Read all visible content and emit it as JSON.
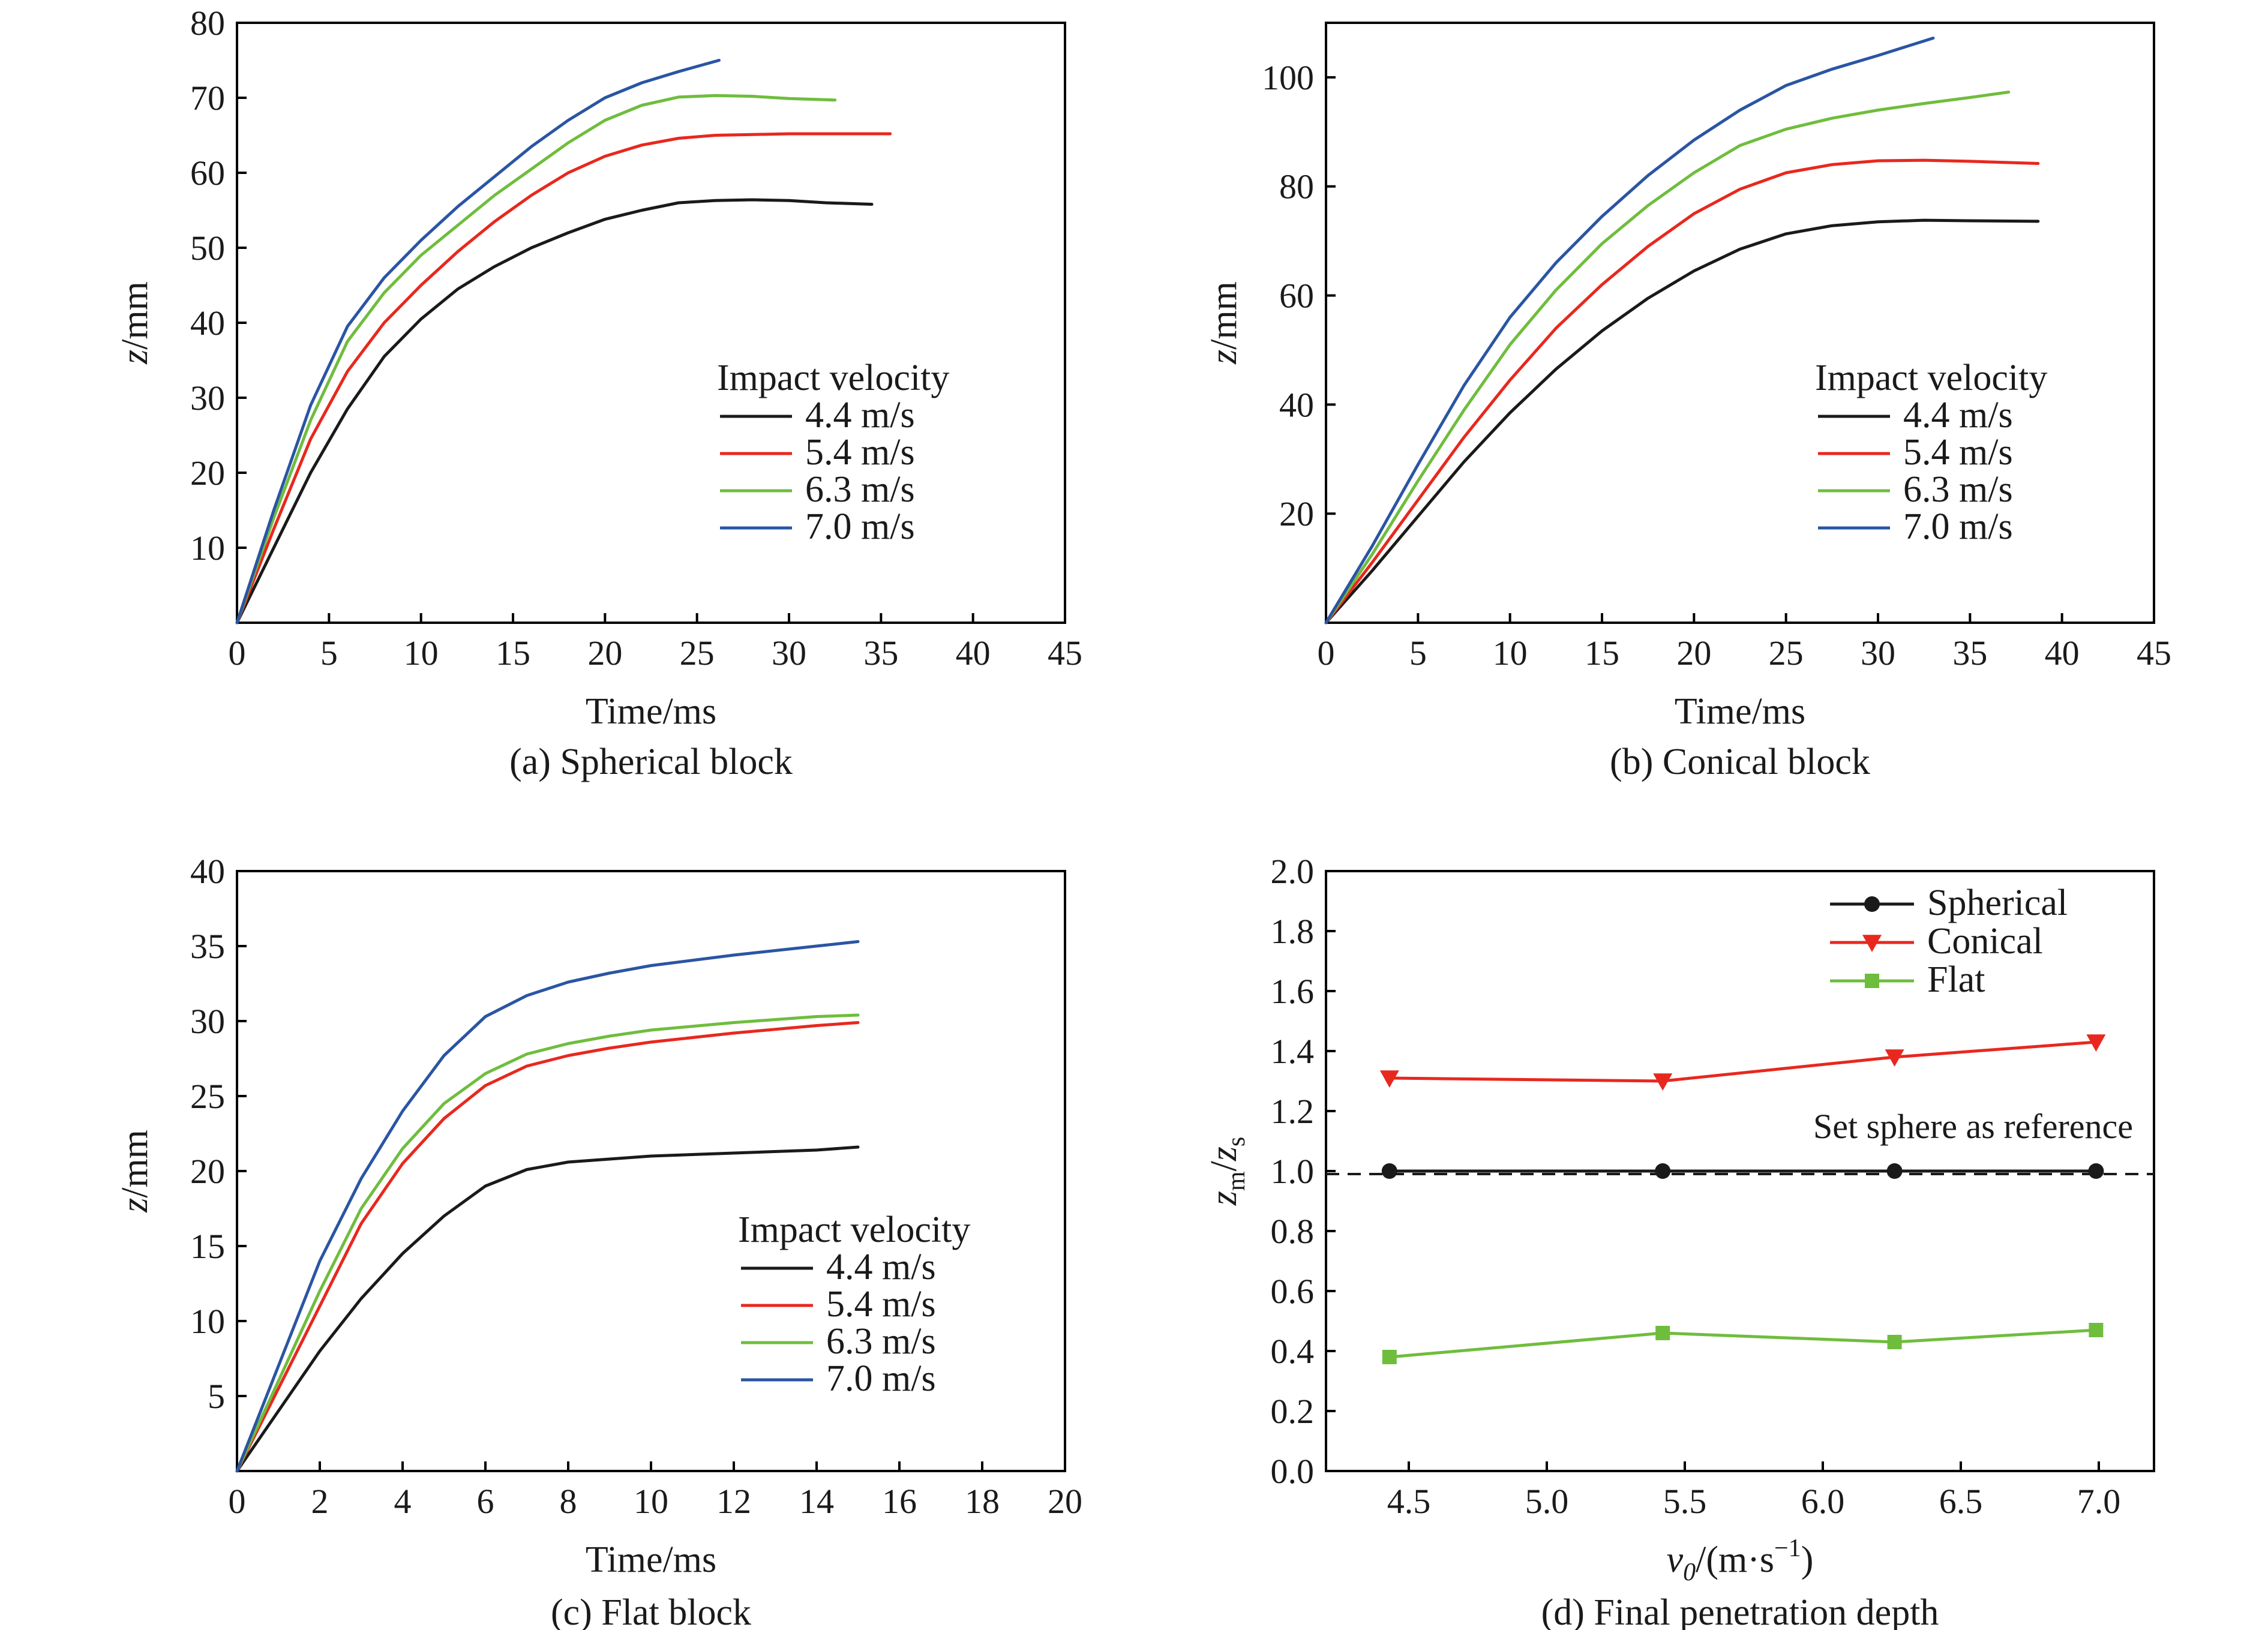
{
  "chart_data": [
    {
      "type": "line",
      "caption": "(a) Spherical block",
      "xlabel": "Time/ms",
      "ylabel": "z/mm",
      "xlim": [
        0,
        45
      ],
      "ylim": [
        0,
        80
      ],
      "xticks": [
        0,
        5,
        10,
        15,
        20,
        25,
        30,
        35,
        40,
        45
      ],
      "yticks": [
        10,
        20,
        30,
        40,
        50,
        60,
        70,
        80
      ],
      "legend_title": "Impact velocity",
      "legend_position": "center-right",
      "series": [
        {
          "name": "4.4 m/s",
          "color": "#1a1a1a",
          "x": [
            0,
            2,
            4,
            6,
            8,
            10,
            12,
            14,
            16,
            18,
            20,
            22,
            24,
            26,
            28,
            30,
            32,
            34.5
          ],
          "y": [
            0,
            10,
            20,
            28.5,
            35.5,
            40.5,
            44.5,
            47.5,
            50,
            52,
            53.8,
            55,
            56,
            56.3,
            56.4,
            56.3,
            56,
            55.8
          ]
        },
        {
          "name": "5.4 m/s",
          "color": "#e8281e",
          "x": [
            0,
            2,
            4,
            6,
            8,
            10,
            12,
            14,
            16,
            18,
            20,
            22,
            24,
            26,
            28,
            30,
            32,
            35.5
          ],
          "y": [
            0,
            12.5,
            24.5,
            33.5,
            40,
            45,
            49.5,
            53.5,
            57,
            60,
            62.2,
            63.7,
            64.6,
            65,
            65.1,
            65.2,
            65.2,
            65.2
          ]
        },
        {
          "name": "6.3 m/s",
          "color": "#6fbd3d",
          "x": [
            0,
            2,
            4,
            6,
            8,
            10,
            12,
            14,
            16,
            18,
            20,
            22,
            24,
            26,
            28,
            30,
            32.5
          ],
          "y": [
            0,
            14,
            27,
            37.5,
            44,
            49,
            53,
            57,
            60.5,
            64,
            67,
            69,
            70.1,
            70.3,
            70.2,
            69.9,
            69.7
          ]
        },
        {
          "name": "7.0 m/s",
          "color": "#2a55a3",
          "x": [
            0,
            2,
            4,
            6,
            8,
            10,
            12,
            14,
            16,
            18,
            20,
            22,
            24,
            26.2
          ],
          "y": [
            0,
            15,
            29,
            39.5,
            46,
            51,
            55.5,
            59.5,
            63.5,
            67,
            70,
            72,
            73.5,
            75
          ]
        }
      ]
    },
    {
      "type": "line",
      "caption": "(b) Conical block",
      "xlabel": "Time/ms",
      "ylabel": "z/mm",
      "xlim": [
        0,
        45
      ],
      "ylim": [
        0,
        110
      ],
      "xticks": [
        0,
        5,
        10,
        15,
        20,
        25,
        30,
        35,
        40,
        45
      ],
      "yticks": [
        20,
        40,
        60,
        80,
        100
      ],
      "legend_title": "Impact velocity",
      "legend_position": "center-right",
      "series": [
        {
          "name": "4.4 m/s",
          "color": "#1a1a1a",
          "x": [
            0,
            2.5,
            5,
            7.5,
            10,
            12.5,
            15,
            17.5,
            20,
            22.5,
            25,
            27.5,
            30,
            32.5,
            35,
            38.7
          ],
          "y": [
            0,
            9.5,
            19.5,
            29.5,
            38.5,
            46.5,
            53.5,
            59.5,
            64.5,
            68.5,
            71.3,
            72.8,
            73.5,
            73.8,
            73.7,
            73.6
          ]
        },
        {
          "name": "5.4 m/s",
          "color": "#e8281e",
          "x": [
            0,
            2.5,
            5,
            7.5,
            10,
            12.5,
            15,
            17.5,
            20,
            22.5,
            25,
            27.5,
            30,
            32.5,
            35,
            38.7
          ],
          "y": [
            0,
            11,
            22.5,
            34,
            44.5,
            54,
            62,
            69,
            75,
            79.5,
            82.5,
            84,
            84.7,
            84.8,
            84.6,
            84.2
          ]
        },
        {
          "name": "6.3 m/s",
          "color": "#6fbd3d",
          "x": [
            0,
            2.5,
            5,
            7.5,
            10,
            12.5,
            15,
            17.5,
            20,
            22.5,
            25,
            27.5,
            30,
            32.5,
            35,
            37.1
          ],
          "y": [
            0,
            12.5,
            26,
            39,
            51,
            61,
            69.5,
            76.5,
            82.5,
            87.5,
            90.5,
            92.5,
            94,
            95.2,
            96.3,
            97.3
          ]
        },
        {
          "name": "7.0 m/s",
          "color": "#2a55a3",
          "x": [
            0,
            2.5,
            5,
            7.5,
            10,
            12.5,
            15,
            17.5,
            20,
            22.5,
            25,
            27.5,
            30,
            33
          ],
          "y": [
            0,
            14,
            29,
            43.5,
            56,
            66,
            74.5,
            82,
            88.5,
            94,
            98.5,
            101.5,
            104,
            107.2
          ]
        }
      ]
    },
    {
      "type": "line",
      "caption": "(c) Flat block",
      "xlabel": "Time/ms",
      "ylabel": "z/mm",
      "xlim": [
        0,
        20
      ],
      "ylim": [
        0,
        40
      ],
      "xticks": [
        0,
        2,
        4,
        6,
        8,
        10,
        12,
        14,
        16,
        18,
        20
      ],
      "yticks": [
        5,
        10,
        15,
        20,
        25,
        30,
        35,
        40
      ],
      "legend_title": "Impact velocity",
      "legend_position": "lower-right",
      "series": [
        {
          "name": "4.4 m/s",
          "color": "#1a1a1a",
          "x": [
            0,
            1,
            2,
            3,
            4,
            5,
            6,
            7,
            8,
            9,
            10,
            12,
            14,
            15
          ],
          "y": [
            0,
            4,
            8,
            11.5,
            14.5,
            17,
            19,
            20.1,
            20.6,
            20.8,
            21,
            21.2,
            21.4,
            21.6
          ]
        },
        {
          "name": "5.4 m/s",
          "color": "#e8281e",
          "x": [
            0,
            1,
            2,
            3,
            4,
            5,
            6,
            7,
            8,
            9,
            10,
            12,
            14,
            15
          ],
          "y": [
            0,
            5.5,
            11,
            16.5,
            20.5,
            23.5,
            25.7,
            27,
            27.7,
            28.2,
            28.6,
            29.2,
            29.7,
            29.9
          ]
        },
        {
          "name": "6.3 m/s",
          "color": "#6fbd3d",
          "x": [
            0,
            1,
            2,
            3,
            4,
            5,
            6,
            7,
            8,
            9,
            10,
            12,
            14,
            15
          ],
          "y": [
            0,
            6,
            12,
            17.5,
            21.5,
            24.5,
            26.5,
            27.8,
            28.5,
            29,
            29.4,
            29.9,
            30.3,
            30.4
          ]
        },
        {
          "name": "7.0 m/s",
          "color": "#2a55a3",
          "x": [
            0,
            1,
            2,
            3,
            4,
            5,
            6,
            7,
            8,
            9,
            10,
            12,
            14,
            15
          ],
          "y": [
            0,
            7,
            14,
            19.5,
            24,
            27.7,
            30.3,
            31.7,
            32.6,
            33.2,
            33.7,
            34.4,
            35,
            35.3
          ]
        }
      ]
    },
    {
      "type": "line",
      "caption": "(d) Final penetration depth",
      "xlabel": "v0/(m·s−1)",
      "ylabel": "zm/zs",
      "xlim": [
        4.2,
        7.2
      ],
      "ylim": [
        0,
        2.0
      ],
      "xticks": [
        4.5,
        5.0,
        5.5,
        6.0,
        6.5,
        7.0
      ],
      "yticks": [
        0,
        0.2,
        0.4,
        0.6,
        0.8,
        1.0,
        1.2,
        1.4,
        1.6,
        1.8,
        2.0
      ],
      "legend_position": "top-right",
      "reference_line": {
        "y": 0.99,
        "style": "dashed",
        "label": "Set sphere as reference"
      },
      "series": [
        {
          "name": "Spherical",
          "color": "#1a1a1a",
          "marker": "circle",
          "x": [
            4.43,
            5.42,
            6.26,
            6.99
          ],
          "y": [
            1.0,
            1.0,
            1.0,
            1.0
          ]
        },
        {
          "name": "Conical",
          "color": "#e8281e",
          "marker": "triangle-down",
          "x": [
            4.43,
            5.42,
            6.26,
            6.99
          ],
          "y": [
            1.31,
            1.3,
            1.38,
            1.43
          ]
        },
        {
          "name": "Flat",
          "color": "#6fbd3d",
          "marker": "square",
          "x": [
            4.43,
            5.42,
            6.26,
            6.99
          ],
          "y": [
            0.38,
            0.46,
            0.43,
            0.47
          ]
        }
      ]
    }
  ],
  "labels": {
    "d_xlabel_main": "v",
    "d_xlabel_sub": "0",
    "d_xlabel_unit": "/(m·s",
    "d_xlabel_sup": "−1",
    "d_xlabel_close": ")",
    "d_ylabel_z1": "z",
    "d_ylabel_sub1": "m",
    "d_ylabel_slash": "/",
    "d_ylabel_z2": "z",
    "d_ylabel_sub2": "s",
    "abc_ylabel_z": "z",
    "abc_ylabel_unit": "/mm"
  }
}
